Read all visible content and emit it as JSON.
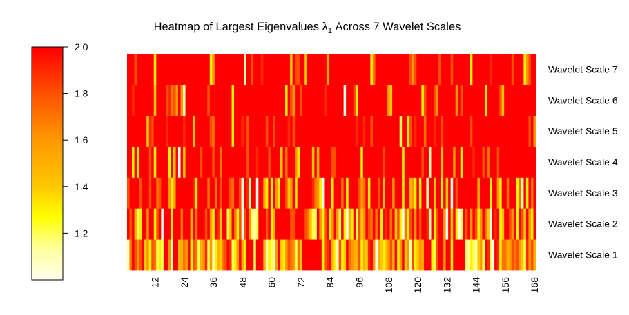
{
  "chart_data": {
    "type": "heatmap",
    "title": {
      "prefix": "Heatmap of Largest Eigenvalues λ",
      "subscript": "1",
      "suffix": " Across 7 Wavelet Scales"
    },
    "xlabel": "",
    "ylabel": "",
    "x_range": [
      1,
      168
    ],
    "x_ticks": [
      "12",
      "24",
      "36",
      "48",
      "60",
      "72",
      "84",
      "96",
      "108",
      "120",
      "132",
      "144",
      "156",
      "168"
    ],
    "row_labels": [
      "Wavelet Scale 1",
      "Wavelet Scale 2",
      "Wavelet Scale 3",
      "Wavelet Scale 4",
      "Wavelet Scale 5",
      "Wavelet Scale 6",
      "Wavelet Scale 7"
    ],
    "colorbar": {
      "ticks": [
        "1.2",
        "1.4",
        "1.6",
        "1.8",
        "2.0"
      ],
      "zlim": [
        1.0,
        2.0
      ],
      "colors": {
        "low": "#FFFFF0",
        "mid": "#FFFF00",
        "high": "#FF0000"
      }
    },
    "grid": false,
    "legend_position": "left",
    "rows": [
      [
        1.1,
        1.7,
        2,
        1.8,
        1.6,
        1.8,
        2,
        1.4,
        1.6,
        1.3,
        1.8,
        1.7,
        1.2,
        1.3,
        1.2,
        2,
        2,
        1.6,
        1.1,
        2,
        2,
        1.5,
        1.5,
        1.7,
        1.6,
        2,
        1.3,
        1.8,
        1.7,
        1.2,
        1.5,
        1.6,
        1.9,
        1.2,
        1.6,
        1.1,
        1.3,
        1.5,
        1.4,
        1.7,
        1.8,
        2,
        1.9,
        1.2,
        1.3,
        1.6,
        2,
        1.5,
        1.3,
        2,
        2,
        2,
        1.2,
        2,
        2,
        2,
        1.5,
        1.1,
        1.3,
        1.2,
        1.1,
        1.6,
        2,
        1.4,
        1.3,
        1.6,
        1.8,
        1.7,
        1.6,
        1.2,
        1.7,
        1.4,
        2,
        2,
        2,
        2,
        2,
        2,
        2,
        2,
        1.3,
        1.8,
        1.9,
        2,
        1.5,
        1.3,
        1.1,
        1.8,
        1.3,
        1.4,
        2,
        1.7,
        1.6,
        1.5,
        1.5,
        1.8,
        1.3,
        1.5,
        1.4,
        1.9,
        2,
        1.6,
        1.0,
        1.5,
        1.4,
        1.3,
        1.4,
        1.6,
        1.8,
        1.5,
        2,
        1.3,
        1.6,
        2,
        1.4,
        1.6,
        1.1,
        1.8,
        1.3,
        1.4,
        1.6,
        1.5,
        2,
        2,
        2,
        1.3,
        1.2,
        1.8,
        2,
        2,
        1.6,
        2,
        2,
        1.3,
        2,
        2,
        2,
        2,
        2,
        1.2,
        1.1,
        1.3,
        1.2,
        1.1,
        1.4,
        1.6,
        1.2,
        2,
        1.9,
        1.2,
        1.0,
        2,
        1.9,
        1.3,
        1.7,
        1.7,
        1.5,
        1.6,
        1.8,
        1.7,
        1.8,
        1.6,
        1.4,
        1.2,
        1.9,
        1.6,
        1.8,
        1.5
      ],
      [
        2,
        1.8,
        2,
        1.5,
        1.2,
        1.3,
        2,
        2,
        1.6,
        2,
        2,
        1.3,
        1.8,
        2,
        1.0,
        2,
        2,
        2,
        1.3,
        2,
        2,
        2,
        1.7,
        2,
        2,
        2,
        1.5,
        2,
        1.7,
        2,
        2,
        2,
        1.8,
        2,
        1.6,
        1.3,
        2,
        1.9,
        1.4,
        2,
        2,
        1.2,
        1.4,
        2,
        1.7,
        1.3,
        1.8,
        1.0,
        1.8,
        2,
        1.6,
        1.2,
        1.1,
        1.2,
        2,
        2,
        2,
        1.8,
        2,
        1.3,
        1.5,
        2,
        2,
        2,
        2,
        2,
        2,
        1.8,
        1.8,
        2,
        2,
        2,
        2,
        1.8,
        1.7,
        1.4,
        1.2,
        1.2,
        2,
        1.6,
        1.3,
        1.8,
        2,
        1.3,
        1.6,
        2,
        1.6,
        1.2,
        2,
        1.3,
        1.0,
        1.5,
        1.3,
        2,
        1.2,
        1.8,
        1.4,
        1.6,
        2,
        1.8,
        1.7,
        2,
        1.7,
        2,
        1.3,
        2,
        1.9,
        2,
        1.7,
        2,
        1.4,
        1.8,
        1.3,
        1.0,
        1.7,
        1.3,
        1.8,
        2,
        1.6,
        2,
        1.8,
        2,
        2,
        1.9,
        1.1,
        2,
        1.3,
        1.8,
        2,
        2,
        1.6,
        1.0,
        2,
        1.4,
        2,
        1.3,
        1.0,
        1.2,
        2,
        1.8,
        2,
        1.6,
        2,
        1.8,
        1.3,
        1.6,
        2,
        1.7,
        1.4,
        1.0,
        2,
        1.9,
        2,
        1.3,
        1.4,
        2,
        2,
        1.8,
        1.6,
        2,
        1.3,
        2,
        1.8,
        1.4,
        2,
        1.6,
        1.3,
        2
      ],
      [
        1.8,
        2,
        2,
        2,
        2,
        1.8,
        2,
        2,
        2,
        1.8,
        2,
        2,
        1.7,
        1.8,
        2,
        2,
        2,
        1.6,
        1.3,
        1.5,
        2,
        2,
        2,
        2,
        2,
        2,
        2,
        1.9,
        1.3,
        2,
        2,
        2,
        2,
        1.7,
        2,
        2,
        1.7,
        2,
        1.8,
        2,
        2,
        2,
        1.8,
        1.7,
        2,
        2,
        1.8,
        1.0,
        2,
        1.9,
        1.1,
        2,
        2,
        1.0,
        2,
        2,
        1.5,
        1.3,
        2,
        1.3,
        2,
        1.6,
        1.3,
        2,
        2,
        1.8,
        1.4,
        1.6,
        2,
        1.3,
        2,
        2,
        2,
        2,
        2,
        2,
        1.9,
        1.7,
        1.6,
        1.3,
        1.0,
        2,
        2,
        2,
        1.3,
        2,
        2,
        2,
        1.7,
        2,
        1.3,
        2,
        2,
        2,
        2,
        1.8,
        1.6,
        1.7,
        2,
        1.3,
        2,
        2,
        2,
        1.8,
        2,
        1.4,
        2,
        2,
        2,
        1.6,
        2,
        2,
        2,
        1.3,
        2,
        2,
        1.5,
        1.6,
        1.3,
        2,
        1.3,
        2,
        2,
        1.1,
        2,
        2,
        1.4,
        2,
        2,
        1.3,
        2,
        1.4,
        2,
        1.0,
        2,
        1.8,
        2,
        2,
        2,
        2,
        2,
        2,
        2,
        2,
        1.5,
        2,
        2,
        2,
        2,
        1.3,
        2,
        2,
        1.6,
        1.3,
        2,
        2,
        1.7,
        2,
        2,
        2,
        1.3,
        1.7,
        1.1,
        2,
        1.3,
        2,
        1.7,
        2
      ],
      [
        2,
        2,
        1.3,
        2,
        1.3,
        2,
        2,
        2,
        2,
        1.8,
        2,
        1.3,
        2,
        2,
        2,
        2,
        2,
        1.3,
        2,
        1.4,
        2,
        1.0,
        2,
        1.4,
        2,
        2,
        2,
        2,
        2,
        2,
        1.8,
        2,
        2,
        2,
        2,
        1.8,
        2,
        2,
        1.7,
        2,
        2,
        2,
        2,
        2,
        2,
        2,
        2,
        2,
        2,
        1.8,
        2,
        2,
        2,
        1.9,
        2,
        2,
        2,
        2,
        1.8,
        2,
        2,
        2,
        2,
        1.4,
        2,
        1.7,
        2,
        2,
        2,
        1.6,
        1.3,
        2,
        2,
        2,
        2,
        2,
        1.4,
        2,
        1.5,
        2,
        2,
        2,
        2,
        2,
        1.8,
        1.8,
        2,
        2,
        2,
        2,
        2,
        2,
        2,
        2,
        2,
        2,
        1.3,
        2,
        2,
        2,
        2,
        2,
        2,
        2,
        2,
        1.8,
        2,
        2,
        2,
        2,
        2,
        2,
        2,
        1.3,
        2,
        2,
        2,
        2,
        2,
        2,
        2,
        1.8,
        2,
        2,
        1.1,
        2,
        2,
        2,
        2,
        1.4,
        2,
        2,
        2,
        2,
        1.6,
        2,
        2,
        1.3,
        2,
        2,
        2,
        2,
        1.9,
        2,
        2,
        2,
        1.8,
        2,
        1.7,
        2,
        2,
        2,
        1.8,
        2,
        2,
        2,
        2,
        2,
        2,
        2,
        2,
        2,
        2,
        2,
        2,
        2,
        2,
        2
      ],
      [
        2,
        2,
        2,
        2,
        2,
        2,
        2,
        2,
        1.4,
        1.9,
        1.8,
        2,
        2,
        2,
        2,
        2,
        1.9,
        2,
        2,
        2,
        2,
        2,
        2,
        1.9,
        2,
        2,
        2,
        1.4,
        2,
        2,
        2,
        2,
        2,
        2,
        1.8,
        1.7,
        2,
        2,
        2,
        2,
        2,
        2,
        2,
        1.3,
        2,
        2,
        2,
        1.9,
        2,
        1.8,
        2,
        2,
        2,
        2,
        2,
        2,
        2,
        1.8,
        2,
        2,
        1.8,
        2,
        2,
        2,
        2,
        2,
        1.9,
        2,
        1.8,
        2,
        2,
        2,
        2,
        2,
        2,
        2,
        2,
        2,
        2,
        2,
        2,
        2,
        2,
        2,
        2,
        2,
        2,
        2,
        2,
        2,
        2,
        2,
        2,
        2,
        1.9,
        2,
        2,
        1.9,
        2,
        2,
        1.8,
        2,
        2,
        2,
        2,
        2,
        2,
        2,
        2,
        2,
        2,
        2,
        1.2,
        2,
        2,
        1.3,
        1.8,
        2,
        1.9,
        2,
        2,
        2,
        1.7,
        2,
        2,
        2,
        1.9,
        2,
        2,
        1.8,
        2,
        2,
        2,
        2,
        2,
        2,
        2,
        2,
        2,
        2,
        2,
        1.8,
        2,
        2,
        2,
        2,
        2,
        2,
        2,
        2,
        2,
        2,
        2,
        2,
        2,
        2,
        2,
        2,
        2,
        2,
        2,
        2,
        2,
        2,
        2,
        1.8,
        2,
        1.6
      ],
      [
        2,
        2,
        1.9,
        2,
        2,
        2,
        2,
        2,
        2,
        2,
        2,
        1.4,
        2,
        2,
        2,
        2,
        1.8,
        1.9,
        1.7,
        1.8,
        1.6,
        2,
        1.6,
        1.1,
        2,
        2,
        2,
        2,
        2,
        2,
        2,
        2,
        2,
        1.8,
        2,
        2,
        2,
        2,
        2,
        2,
        2,
        2,
        2,
        1.3,
        2,
        2,
        2,
        2,
        2,
        2,
        2,
        2,
        2,
        2,
        2,
        2,
        2,
        2,
        2,
        2,
        2,
        2,
        2,
        2,
        2,
        1.3,
        2,
        1.8,
        1.6,
        2,
        2,
        1.8,
        2,
        2,
        2,
        2,
        2,
        2,
        2,
        2,
        2,
        1.9,
        2,
        2,
        2,
        2,
        2,
        2,
        2,
        1.0,
        2,
        2,
        2,
        1.8,
        1.3,
        2,
        2,
        2,
        2,
        2,
        2,
        2,
        2,
        2,
        2,
        2,
        2,
        1.6,
        1.4,
        2,
        2,
        2,
        2,
        2,
        2,
        2,
        2,
        2,
        2,
        2,
        2,
        1.3,
        1.8,
        2,
        2,
        2,
        1.8,
        1.6,
        2,
        2,
        2,
        2,
        2,
        2,
        2,
        1.6,
        2,
        1.8,
        2,
        2,
        2,
        2,
        2,
        2,
        2,
        2,
        2,
        1.3,
        2,
        2,
        2,
        2,
        2,
        1.8,
        1.4,
        2,
        2,
        2,
        2,
        2,
        2,
        2,
        2,
        2,
        2,
        2,
        2,
        2
      ],
      [
        2,
        2,
        2,
        1.8,
        2,
        2,
        2,
        2,
        2,
        2,
        2,
        1.3,
        2,
        2,
        2,
        2,
        2,
        2,
        2,
        2,
        2,
        2,
        2,
        2,
        2,
        2,
        2,
        2,
        2,
        2,
        2,
        2,
        2,
        2,
        1.3,
        1.6,
        2,
        2,
        2,
        2,
        2,
        2,
        2,
        2,
        2,
        2,
        2,
        2,
        1.1,
        2,
        2,
        1.8,
        2,
        2,
        2,
        1.9,
        2,
        2,
        2,
        2,
        2,
        2,
        2,
        2,
        2,
        2,
        2,
        1.4,
        2,
        1.8,
        1.8,
        2,
        2,
        1.4,
        2,
        2,
        2,
        2,
        2,
        2,
        2,
        2,
        1.5,
        2,
        2,
        2,
        2,
        2,
        2,
        2,
        2,
        2,
        2,
        2,
        2,
        2,
        2,
        2,
        2,
        2,
        1.3,
        1.7,
        2,
        2,
        2,
        2,
        2,
        2,
        2,
        2,
        2,
        2,
        2,
        2,
        2,
        2,
        1.8,
        1.6,
        1.8,
        2,
        2,
        2,
        2,
        2,
        2,
        2,
        2,
        2,
        1.8,
        2,
        2,
        2,
        2,
        1.8,
        2,
        2,
        2,
        2,
        2,
        2,
        2,
        1.3,
        2,
        2,
        2,
        2,
        2,
        2,
        2,
        1.9,
        2,
        2,
        2,
        2,
        2,
        2,
        2,
        2,
        1.8,
        2,
        2,
        2,
        2,
        1.3,
        1.6,
        1.8,
        2,
        2
      ]
    ]
  }
}
